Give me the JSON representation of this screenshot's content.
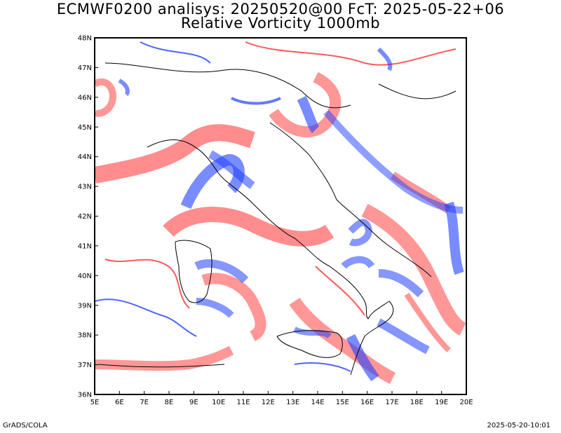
{
  "header": {
    "title_line1": "ECMWF0200 analisys: 20250520@00 FcT: 2025-05-22+06",
    "title_line2": "Relative Vorticity 1000mb"
  },
  "map": {
    "lon_range": [
      5,
      20
    ],
    "lat_range": [
      36,
      48
    ],
    "lat_labels": [
      "48N",
      "47N",
      "46N",
      "45N",
      "44N",
      "43N",
      "42N",
      "41N",
      "40N",
      "39N",
      "38N",
      "37N",
      "36N"
    ],
    "lon_labels": [
      "5E",
      "6E",
      "7E",
      "8E",
      "9E",
      "10E",
      "11E",
      "12E",
      "13E",
      "14E",
      "15E",
      "16E",
      "17E",
      "18E",
      "19E",
      "20E"
    ],
    "colors": {
      "positive_vorticity": "#ff3030",
      "negative_vorticity": "#2040ff",
      "coastline": "#000000",
      "frame": "#000000"
    }
  },
  "footer": {
    "left": "GrADS/COLA",
    "right": "2025-05-20-10:01"
  }
}
